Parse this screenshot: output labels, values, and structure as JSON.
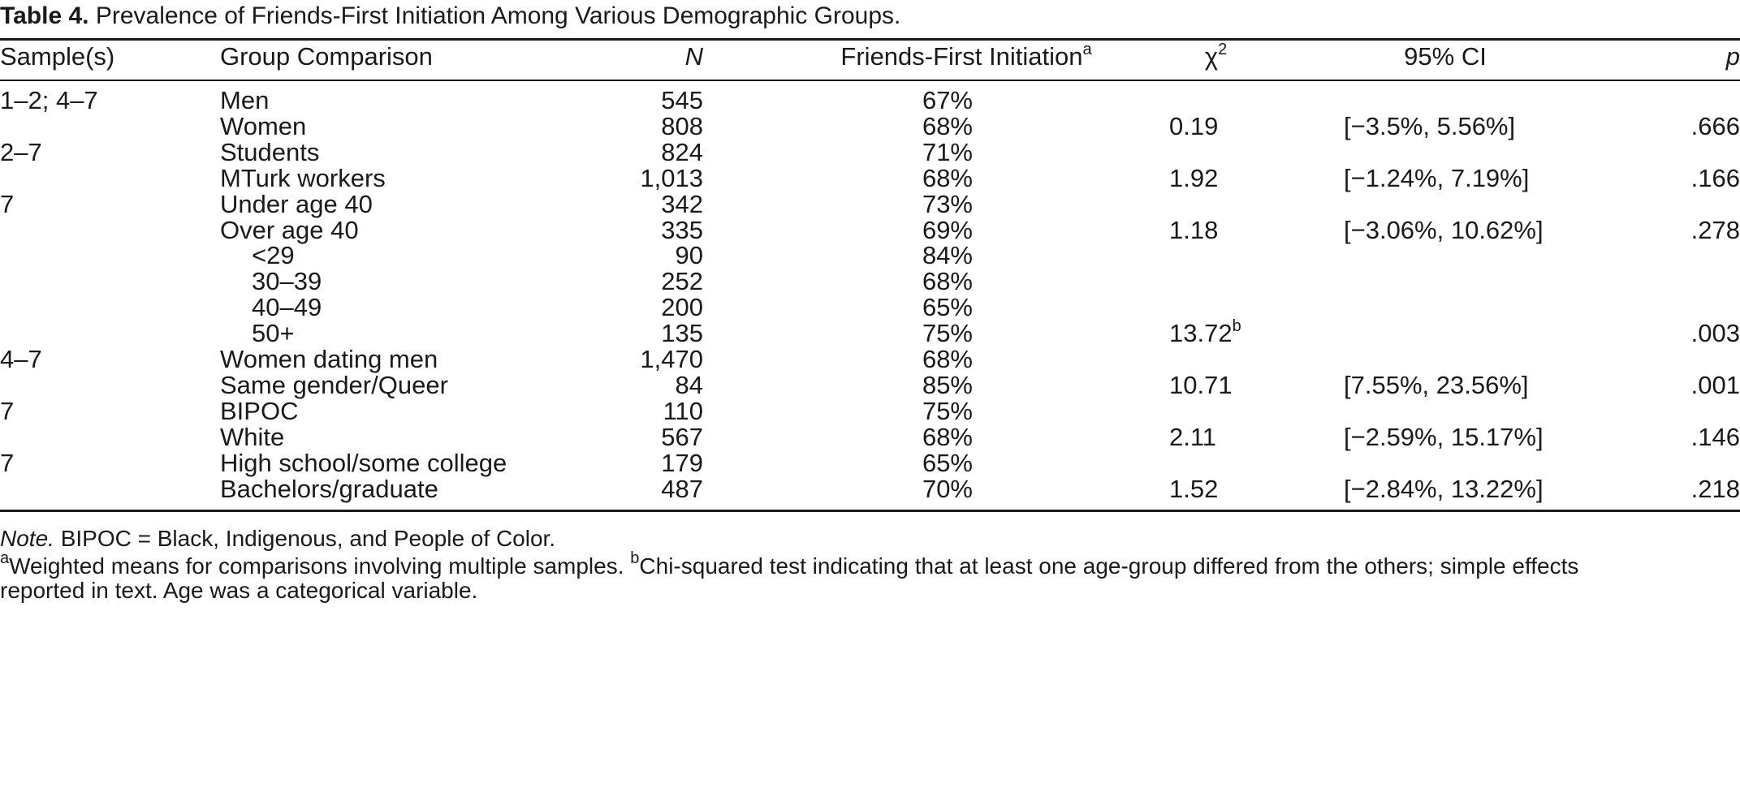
{
  "caption": {
    "label": "Table 4.",
    "text": " Prevalence of Friends-First Initiation Among Various Demographic Groups."
  },
  "headers": {
    "sample": "Sample(s)",
    "group": "Group Comparison",
    "n": "N",
    "ffi": "Friends-First Initiation",
    "ffi_sup": "a",
    "chi": "χ",
    "chi_sup": "2",
    "ci": "95% CI",
    "p": "p"
  },
  "rows": [
    {
      "sample": "1–2; 4–7",
      "group": "Men",
      "n": "545",
      "ffi": "67%",
      "chi": "",
      "chi_sup": "",
      "ci": "",
      "p": ""
    },
    {
      "sample": "",
      "group": "Women",
      "n": "808",
      "ffi": "68%",
      "chi": "0.19",
      "chi_sup": "",
      "ci": "[−3.5%, 5.56%]",
      "p": ".666"
    },
    {
      "sample": "2–7",
      "group": "Students",
      "n": "824",
      "ffi": "71%",
      "chi": "",
      "chi_sup": "",
      "ci": "",
      "p": ""
    },
    {
      "sample": "",
      "group": "MTurk workers",
      "n": "1,013",
      "ffi": "68%",
      "chi": "1.92",
      "chi_sup": "",
      "ci": "[−1.24%, 7.19%]",
      "p": ".166"
    },
    {
      "sample": "7",
      "group": "Under age 40",
      "n": "342",
      "ffi": "73%",
      "chi": "",
      "chi_sup": "",
      "ci": "",
      "p": ""
    },
    {
      "sample": "",
      "group": "Over age 40",
      "n": "335",
      "ffi": "69%",
      "chi": "1.18",
      "chi_sup": "",
      "ci": "[−3.06%, 10.62%]",
      "p": ".278"
    },
    {
      "sample": "",
      "group": "<29",
      "indent": true,
      "n": "90",
      "ffi": "84%",
      "chi": "",
      "chi_sup": "",
      "ci": "",
      "p": ""
    },
    {
      "sample": "",
      "group": "30–39",
      "indent": true,
      "n": "252",
      "ffi": "68%",
      "chi": "",
      "chi_sup": "",
      "ci": "",
      "p": ""
    },
    {
      "sample": "",
      "group": "40–49",
      "indent": true,
      "n": "200",
      "ffi": "65%",
      "chi": "",
      "chi_sup": "",
      "ci": "",
      "p": ""
    },
    {
      "sample": "",
      "group": "50+",
      "indent": true,
      "n": "135",
      "ffi": "75%",
      "chi": "13.72",
      "chi_sup": "b",
      "ci": "",
      "p": ".003"
    },
    {
      "sample": "4–7",
      "group": "Women dating men",
      "n": "1,470",
      "ffi": "68%",
      "chi": "",
      "chi_sup": "",
      "ci": "",
      "p": ""
    },
    {
      "sample": "",
      "group": "Same gender/Queer",
      "n": "84",
      "ffi": "85%",
      "chi": "10.71",
      "chi_sup": "",
      "ci": "[7.55%, 23.56%]",
      "p": ".001"
    },
    {
      "sample": "7",
      "group": "BIPOC",
      "n": "110",
      "ffi": "75%",
      "chi": "",
      "chi_sup": "",
      "ci": "",
      "p": ""
    },
    {
      "sample": "",
      "group": "White",
      "n": "567",
      "ffi": "68%",
      "chi": "2.11",
      "chi_sup": "",
      "ci": "[−2.59%, 15.17%]",
      "p": ".146"
    },
    {
      "sample": "7",
      "group": "High school/some college",
      "n": "179",
      "ffi": "65%",
      "chi": "",
      "chi_sup": "",
      "ci": "",
      "p": ""
    },
    {
      "sample": "",
      "group": "Bachelors/graduate",
      "n": "487",
      "ffi": "70%",
      "chi": "1.52",
      "chi_sup": "",
      "ci": "[−2.84%, 13.22%]",
      "p": ".218"
    }
  ],
  "notes": {
    "note_label": "Note.",
    "note_text": " BIPOC = Black, Indigenous, and People of Color.",
    "fn_a_sup": "a",
    "fn_a_text": "Weighted means for comparisons involving multiple samples. ",
    "fn_b_sup": "b",
    "fn_b_text": "Chi-squared test indicating that at least one age-group differed from the others; simple effects",
    "fn_b_cont": " reported in text. Age was a categorical variable."
  }
}
